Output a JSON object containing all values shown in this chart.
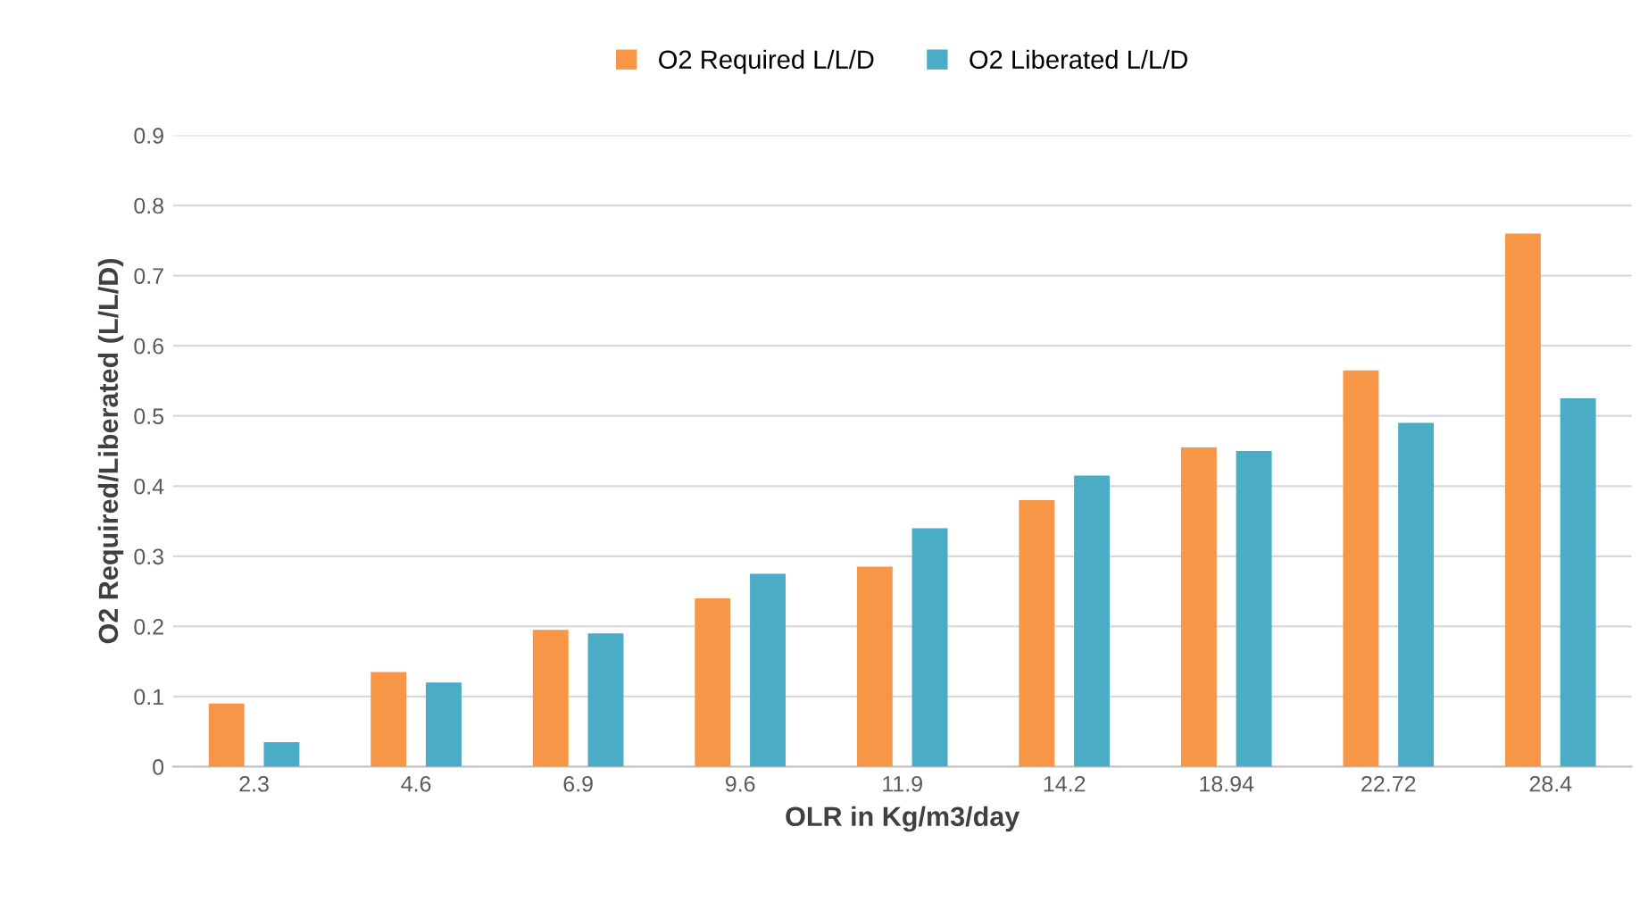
{
  "chart_data": {
    "type": "bar",
    "xlabel": "OLR in Kg/m3/day",
    "ylabel": "O2 Required/Liberated (L/L/D)",
    "categories": [
      "2.3",
      "4.6",
      "6.9",
      "9.6",
      "11.9",
      "14.2",
      "18.94",
      "22.72",
      "28.4"
    ],
    "series": [
      {
        "name": "O2 Required L/L/D",
        "color": "#f79646",
        "values": [
          0.09,
          0.135,
          0.195,
          0.24,
          0.285,
          0.38,
          0.455,
          0.565,
          0.76
        ]
      },
      {
        "name": "O2 Liberated L/L/D",
        "color": "#4bacc6",
        "values": [
          0.035,
          0.12,
          0.19,
          0.275,
          0.34,
          0.415,
          0.45,
          0.49,
          0.525
        ]
      }
    ],
    "ylim": [
      0,
      0.9
    ],
    "yticks": [
      0,
      0.1,
      0.2,
      0.3,
      0.4,
      0.5,
      0.6,
      0.7,
      0.8,
      0.9
    ],
    "grid": "y",
    "legend": "top"
  }
}
